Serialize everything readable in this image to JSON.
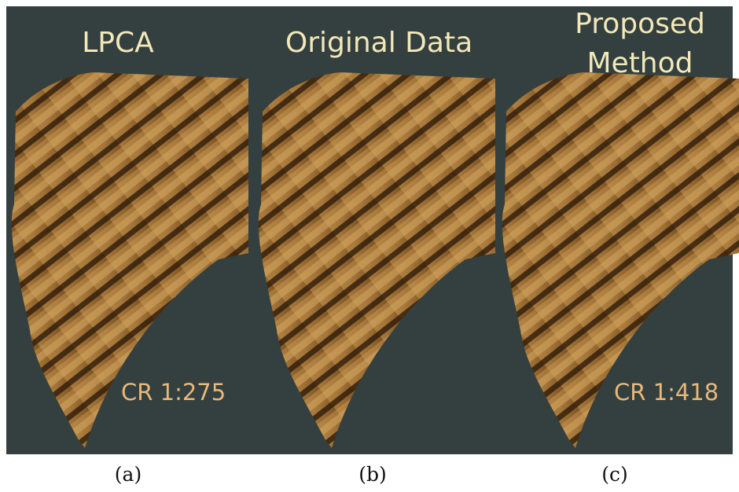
{
  "panels": [
    {
      "title": "LPCA",
      "ratio": "CR 1:275",
      "caption": "(a)"
    },
    {
      "title": "Original Data",
      "caption": "(b)"
    },
    {
      "title_lines": [
        "Proposed",
        "Method"
      ],
      "ratio": "CR 1:418",
      "caption": "(c)"
    }
  ]
}
